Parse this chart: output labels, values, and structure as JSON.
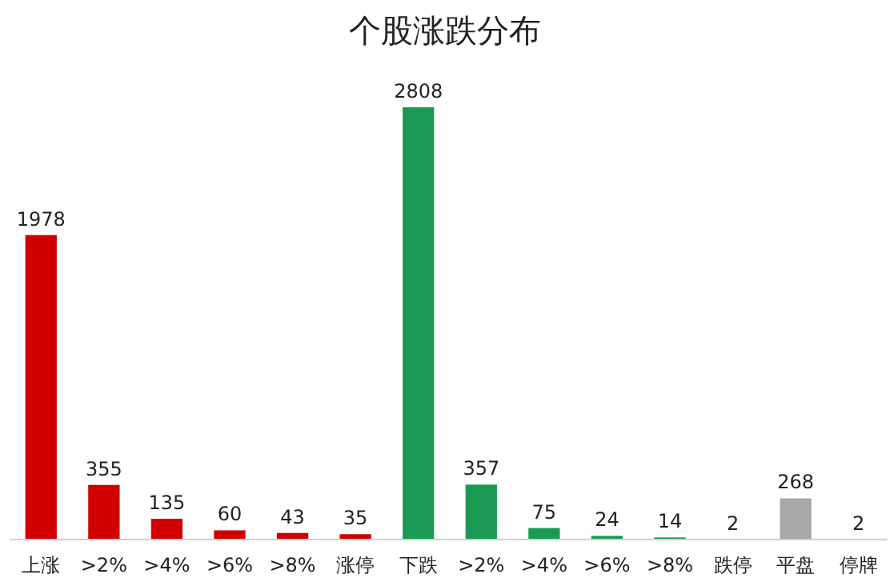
{
  "chart_data": {
    "type": "bar",
    "title": "个股涨跌分布",
    "categories": [
      "上涨",
      ">2%",
      ">4%",
      ">6%",
      ">8%",
      "涨停",
      "下跌",
      ">2%",
      ">4%",
      ">6%",
      ">8%",
      "跌停",
      "平盘",
      "停牌"
    ],
    "values": [
      1978,
      355,
      135,
      60,
      43,
      35,
      2808,
      357,
      75,
      24,
      14,
      2,
      268,
      2
    ],
    "colors": [
      "#d00000",
      "#d00000",
      "#d00000",
      "#d00000",
      "#d00000",
      "#d00000",
      "#1a9a55",
      "#1a9a55",
      "#1a9a55",
      "#1a9a55",
      "#1a9a55",
      "#1a9a55",
      "#a8a8a8",
      "#a8a8a8"
    ],
    "data_labels": true
  }
}
